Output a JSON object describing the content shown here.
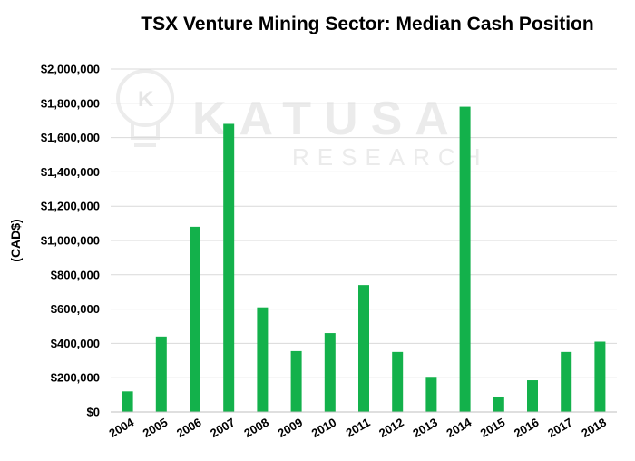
{
  "chart_data": {
    "type": "bar",
    "title": "TSX Venture Mining Sector: Median Cash Position",
    "ylabel": "(CAD$)",
    "xlabel": "",
    "categories": [
      "2004",
      "2005",
      "2006",
      "2007",
      "2008",
      "2009",
      "2010",
      "2011",
      "2012",
      "2013",
      "2014",
      "2015",
      "2016",
      "2017",
      "2018"
    ],
    "values": [
      120000,
      440000,
      1080000,
      1680000,
      610000,
      355000,
      460000,
      740000,
      350000,
      205000,
      1780000,
      90000,
      185000,
      350000,
      410000
    ],
    "ylim": [
      0,
      2000000
    ],
    "yticks": [
      "$0",
      "$200,000",
      "$400,000",
      "$600,000",
      "$800,000",
      "$1,000,000",
      "$1,200,000",
      "$1,400,000",
      "$1,600,000",
      "$1,800,000",
      "$2,000,000"
    ],
    "bar_color": "#13b14b",
    "grid": true,
    "legend": "none"
  },
  "watermark": {
    "logo_letter": "K",
    "name": "KATUSA",
    "sub": "RESEARCH"
  }
}
